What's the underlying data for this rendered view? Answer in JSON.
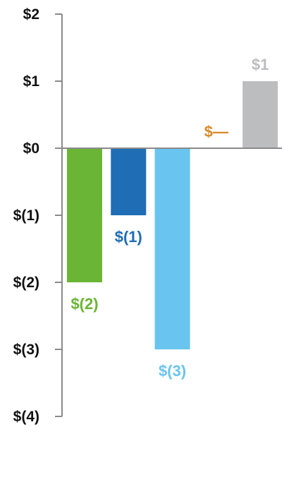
{
  "chart_data": {
    "type": "bar",
    "ylim": [
      -4,
      2
    ],
    "y_ticks": [
      {
        "value": 2,
        "label": "$2"
      },
      {
        "value": 1,
        "label": "$1"
      },
      {
        "value": 0,
        "label": "$0"
      },
      {
        "value": -1,
        "label": "$(1)"
      },
      {
        "value": -2,
        "label": "$(2)"
      },
      {
        "value": -3,
        "label": "$(3)"
      },
      {
        "value": -4,
        "label": "$(4)"
      }
    ],
    "bars": [
      {
        "value": -2,
        "label": "$(2)",
        "color": "#6ab535"
      },
      {
        "value": -1,
        "label": "$(1)",
        "color": "#1f6db5"
      },
      {
        "value": -3,
        "label": "$(3)",
        "color": "#69c4f0"
      },
      {
        "value": 0,
        "label": "$—",
        "color": "#d88a29"
      },
      {
        "value": 1,
        "label": "$1",
        "color": "#bcbdbf"
      }
    ],
    "colors": {
      "axis": "#8a8a8a",
      "tick_text": "#111111"
    }
  }
}
